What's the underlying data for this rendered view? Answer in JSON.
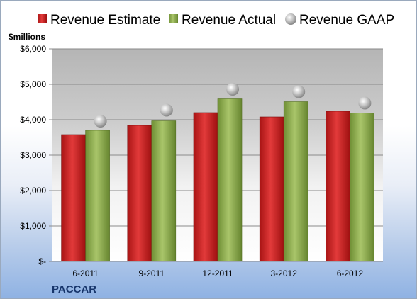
{
  "chart_data": {
    "type": "bar",
    "title": "",
    "unit_label": "$millions",
    "categories": [
      "6-2011",
      "9-2011",
      "12-2011",
      "3-2012",
      "6-2012"
    ],
    "series": [
      {
        "name": "Revenue Estimate",
        "kind": "bar",
        "color": "#d42a2a",
        "values": [
          3580,
          3840,
          4200,
          4080,
          4240
        ]
      },
      {
        "name": "Revenue Actual",
        "kind": "bar",
        "color": "#8fb04e",
        "values": [
          3700,
          3970,
          4590,
          4510,
          4190
        ]
      },
      {
        "name": "Revenue GAAP",
        "kind": "marker",
        "color": "#c8c8c8",
        "values": [
          3960,
          4270,
          4860,
          4790,
          4470
        ]
      }
    ],
    "y_ticks": [
      {
        "value": 0,
        "label": "$-"
      },
      {
        "value": 1000,
        "label": "$1,000"
      },
      {
        "value": 2000,
        "label": "$2,000"
      },
      {
        "value": 3000,
        "label": "$3,000"
      },
      {
        "value": 4000,
        "label": "$4,000"
      },
      {
        "value": 5000,
        "label": "$5,000"
      },
      {
        "value": 6000,
        "label": "$6,000"
      }
    ],
    "ylim": [
      0,
      6000
    ],
    "grid": true,
    "legend_position": "top"
  },
  "company": "PACCAR"
}
